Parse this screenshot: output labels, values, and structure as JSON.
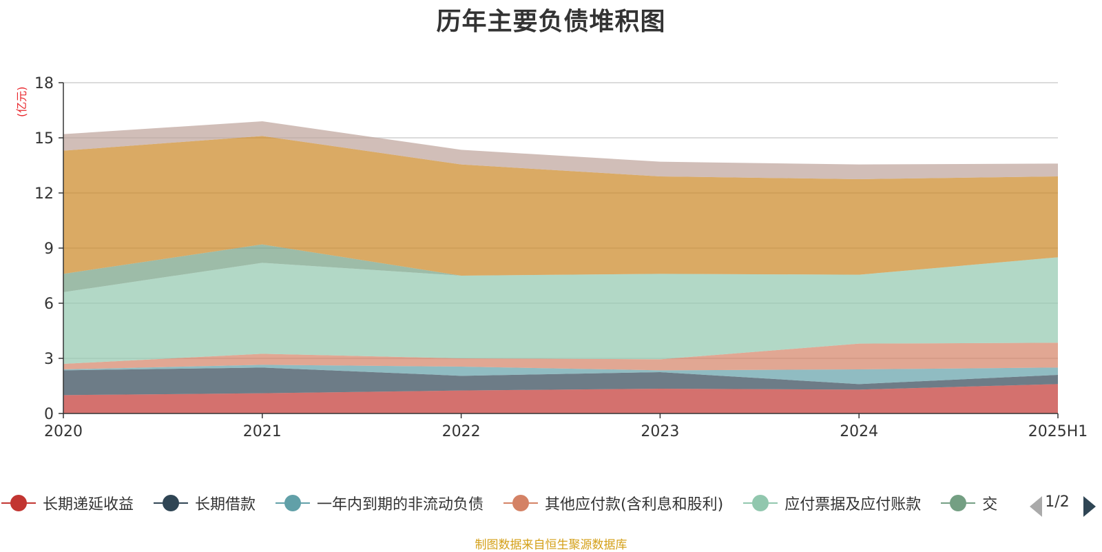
{
  "chart_data": {
    "type": "area",
    "title": "历年主要负债堆积图",
    "ylabel": "(亿元)",
    "ylim": [
      0,
      18
    ],
    "yticks": [
      0,
      3,
      6,
      9,
      12,
      15,
      18
    ],
    "grid": true,
    "legend_position": "bottom",
    "stacked": true,
    "categories": [
      "2020",
      "2021",
      "2022",
      "2023",
      "2024",
      "2025H1"
    ],
    "series": [
      {
        "name": "长期递延收益",
        "color": "#c23531",
        "values": [
          1.0,
          1.1,
          1.25,
          1.35,
          1.3,
          1.6
        ]
      },
      {
        "name": "长期借款",
        "color": "#2f4554",
        "values": [
          1.35,
          1.4,
          0.8,
          0.9,
          0.3,
          0.5
        ]
      },
      {
        "name": "一年内到期的非流动负债",
        "color": "#61a0a8",
        "values": [
          0.05,
          0.15,
          0.5,
          0.1,
          0.8,
          0.4
        ]
      },
      {
        "name": "其他应付款(含利息和股利)",
        "color": "#d48265",
        "values": [
          0.3,
          0.6,
          0.45,
          0.6,
          1.4,
          1.35
        ]
      },
      {
        "name": "应付票据及应付账款",
        "color": "#91c7ae",
        "values": [
          3.9,
          4.95,
          4.5,
          4.65,
          3.75,
          4.65
        ]
      },
      {
        "name": "交易性金融负债",
        "color": "#749f83",
        "values": [
          1.0,
          1.0,
          0.0,
          0.0,
          0.0,
          0.0
        ]
      },
      {
        "name": "",
        "color": "#ca8622",
        "values": [
          6.7,
          5.9,
          6.05,
          5.3,
          5.2,
          4.4
        ]
      },
      {
        "name": "",
        "color": "#bda29a",
        "values": [
          0.9,
          0.8,
          0.8,
          0.8,
          0.8,
          0.7
        ]
      }
    ]
  },
  "legend": {
    "items": [
      {
        "label": "长期递延收益",
        "color": "#c23531"
      },
      {
        "label": "长期借款",
        "color": "#2f4554"
      },
      {
        "label": "一年内到期的非流动负债",
        "color": "#61a0a8"
      },
      {
        "label": "其他应付款(含利息和股利)",
        "color": "#d48265"
      },
      {
        "label": "应付票据及应付账款",
        "color": "#91c7ae"
      },
      {
        "label": "交",
        "color": "#749f83"
      }
    ],
    "page_indicator": "1/2"
  },
  "source_note": "制图数据来自恒生聚源数据库"
}
